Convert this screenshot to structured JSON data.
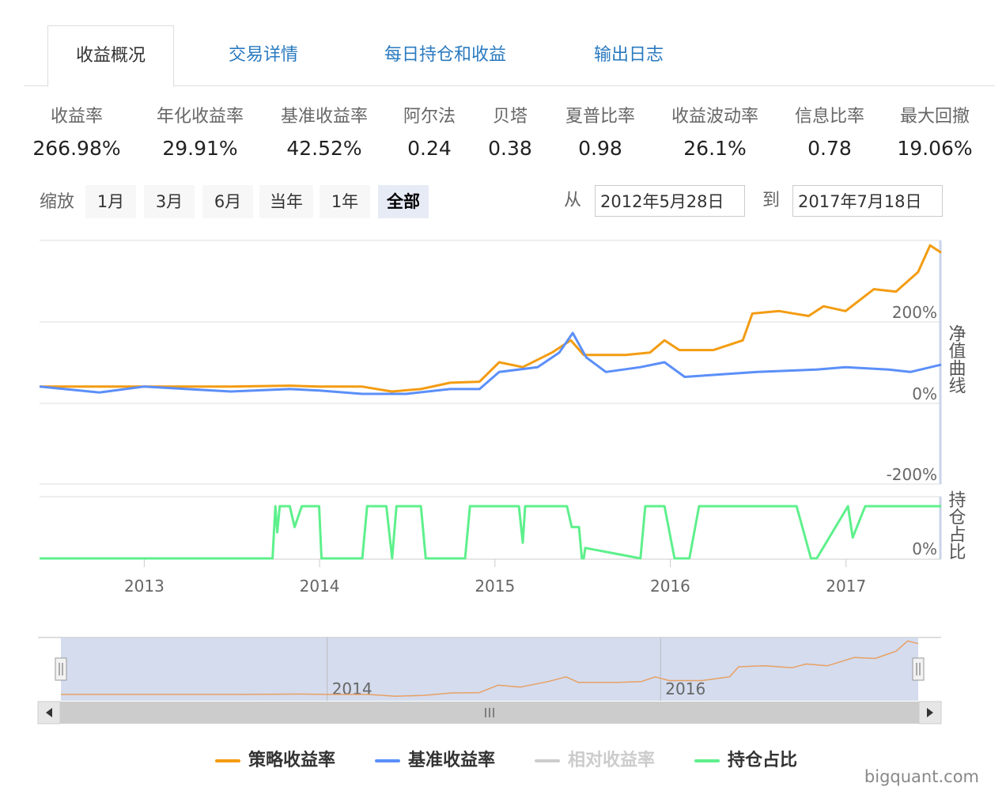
{
  "tabs": [
    {
      "label": "收益概况",
      "active": true
    },
    {
      "label": "交易详情",
      "active": false
    },
    {
      "label": "每日持仓和收益",
      "active": false
    },
    {
      "label": "输出日志",
      "active": false
    }
  ],
  "stats": [
    {
      "label": "收益率",
      "value": "266.98%"
    },
    {
      "label": "年化收益率",
      "value": "29.91%"
    },
    {
      "label": "基准收益率",
      "value": "42.52%"
    },
    {
      "label": "阿尔法",
      "value": "0.24"
    },
    {
      "label": "贝塔",
      "value": "0.38"
    },
    {
      "label": "夏普比率",
      "value": "0.98"
    },
    {
      "label": "收益波动率",
      "value": "26.1%"
    },
    {
      "label": "信息比率",
      "value": "0.78"
    },
    {
      "label": "最大回撤",
      "value": "19.06%"
    }
  ],
  "zoom": {
    "label": "缩放",
    "buttons": [
      "1月",
      "3月",
      "6月",
      "当年",
      "1年",
      "全部"
    ],
    "active": "全部"
  },
  "range": {
    "from_label": "从",
    "from": "2012年5月28日",
    "to_label": "到",
    "to": "2017年7月18日"
  },
  "chart_data": {
    "type": "line",
    "x_range": [
      "2012-05-28",
      "2017-07-18"
    ],
    "x_tick_labels": [
      "2013",
      "2014",
      "2015",
      "2016",
      "2017"
    ],
    "navigator_tick_labels": [
      "2014",
      "2016"
    ],
    "panels": [
      {
        "title": "净值曲线",
        "ylim": [
          -200,
          300
        ],
        "y_tick_labels": [
          "200%",
          "0%",
          "-200%"
        ],
        "series": [
          {
            "name": "策略收益率",
            "color": "#f39c12",
            "x": [
              "2012-05-28",
              "2012-12-31",
              "2013-06-30",
              "2013-10-31",
              "2013-12-31",
              "2014-03-31",
              "2014-05-31",
              "2014-07-31",
              "2014-09-30",
              "2014-11-30",
              "2015-01-10",
              "2015-02-28",
              "2015-04-30",
              "2015-06-08",
              "2015-07-05",
              "2015-09-30",
              "2015-11-20",
              "2015-12-20",
              "2016-01-20",
              "2016-03-31",
              "2016-05-31",
              "2016-06-20",
              "2016-08-15",
              "2016-10-15",
              "2016-11-15",
              "2016-12-31",
              "2017-02-28",
              "2017-04-15",
              "2017-05-31",
              "2017-06-25",
              "2017-07-18"
            ],
            "values": [
              0,
              0,
              0,
              2,
              0,
              0,
              -10,
              -5,
              8,
              10,
              50,
              40,
              70,
              95,
              65,
              65,
              70,
              95,
              75,
              75,
              95,
              150,
              155,
              145,
              165,
              155,
              200,
              195,
              235,
              290,
              275
            ]
          },
          {
            "name": "基准收益率",
            "color": "#5b8ff9",
            "x": [
              "2012-05-28",
              "2012-09-30",
              "2012-12-31",
              "2013-03-31",
              "2013-06-30",
              "2013-10-31",
              "2013-12-31",
              "2014-03-31",
              "2014-06-30",
              "2014-09-30",
              "2014-11-30",
              "2015-01-10",
              "2015-03-31",
              "2015-05-15",
              "2015-06-12",
              "2015-07-10",
              "2015-08-20",
              "2015-10-31",
              "2015-12-20",
              "2016-01-31",
              "2016-06-30",
              "2016-10-31",
              "2016-12-31",
              "2017-03-31",
              "2017-05-15",
              "2017-07-18"
            ],
            "values": [
              0,
              -12,
              0,
              -5,
              -10,
              -5,
              -8,
              -15,
              -15,
              -5,
              -5,
              30,
              40,
              70,
              110,
              60,
              30,
              40,
              50,
              20,
              30,
              35,
              40,
              35,
              30,
              45
            ]
          },
          {
            "name": "相对收益率",
            "color": "#cccccc",
            "visible": false
          }
        ]
      },
      {
        "title": "持仓占比",
        "ylim": [
          0,
          100
        ],
        "y_tick_labels": [
          "0%"
        ],
        "series": [
          {
            "name": "持仓占比",
            "color": "#5ef08c",
            "x": [
              "2012-05-28",
              "2013-09-25",
              "2013-10-01",
              "2013-10-05",
              "2013-10-10",
              "2013-10-15",
              "2013-10-31",
              "2013-11-10",
              "2013-11-25",
              "2013-12-31",
              "2014-01-05",
              "2014-01-20",
              "2014-03-31",
              "2014-04-10",
              "2014-05-20",
              "2014-06-01",
              "2014-06-10",
              "2014-07-31",
              "2014-08-10",
              "2014-10-31",
              "2014-11-10",
              "2015-02-20",
              "2015-02-28",
              "2015-03-05",
              "2015-05-31",
              "2015-06-10",
              "2015-06-25",
              "2015-07-01",
              "2015-07-05",
              "2015-07-08",
              "2015-10-31",
              "2015-11-10",
              "2015-12-20",
              "2016-01-10",
              "2016-02-10",
              "2016-03-01",
              "2016-08-31",
              "2016-09-20",
              "2016-10-20",
              "2016-11-01",
              "2017-01-05",
              "2017-01-15",
              "2017-02-10",
              "2017-07-18"
            ],
            "values": [
              0,
              0,
              100,
              50,
              100,
              100,
              100,
              60,
              100,
              100,
              0,
              0,
              0,
              100,
              100,
              0,
              100,
              100,
              0,
              0,
              100,
              100,
              30,
              100,
              100,
              60,
              60,
              0,
              0,
              20,
              0,
              100,
              100,
              0,
              0,
              100,
              100,
              100,
              0,
              0,
              100,
              40,
              100,
              100
            ]
          }
        ]
      }
    ],
    "legend": [
      {
        "name": "策略收益率",
        "color": "#f39c12",
        "active": true
      },
      {
        "name": "基准收益率",
        "color": "#5b8ff9",
        "active": true
      },
      {
        "name": "相对收益率",
        "color": "#cccccc",
        "active": false
      },
      {
        "name": "持仓占比",
        "color": "#5ef08c",
        "active": true
      }
    ],
    "grid": true
  },
  "credit": "bigquant.com"
}
